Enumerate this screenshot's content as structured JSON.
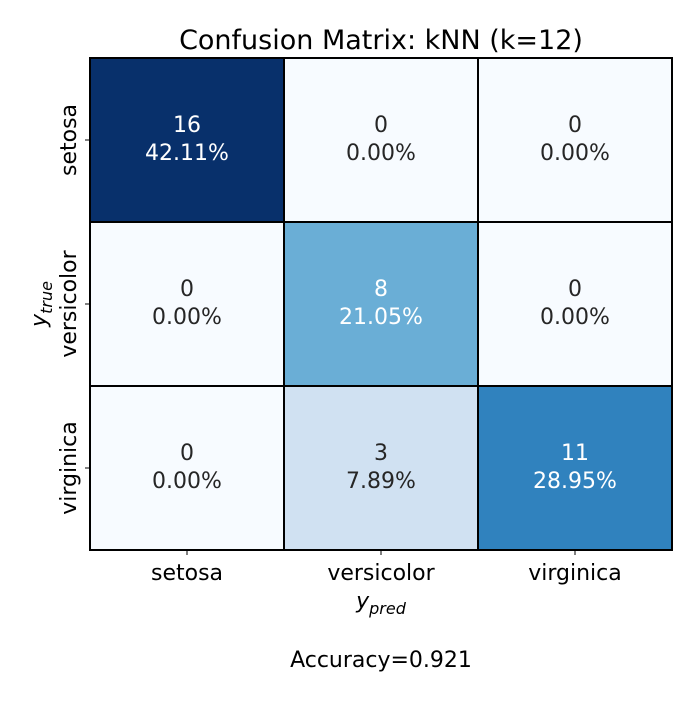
{
  "chart_data": {
    "type": "heatmap",
    "title": "Confusion Matrix: kNN (k=12)",
    "xlabel": {
      "base": "y",
      "sub": "pred"
    },
    "ylabel": {
      "base": "y",
      "sub": "true"
    },
    "row_labels": [
      "setosa",
      "versicolor",
      "virginica"
    ],
    "col_labels": [
      "setosa",
      "versicolor",
      "virginica"
    ],
    "counts": [
      [
        16,
        0,
        0
      ],
      [
        0,
        8,
        0
      ],
      [
        0,
        3,
        11
      ]
    ],
    "percents": [
      [
        "42.11%",
        "0.00%",
        "0.00%"
      ],
      [
        "0.00%",
        "21.05%",
        "0.00%"
      ],
      [
        "0.00%",
        "7.89%",
        "28.95%"
      ]
    ],
    "colors": [
      [
        "#08306b",
        "#f7fbff",
        "#f7fbff"
      ],
      [
        "#f7fbff",
        "#6aaed6",
        "#f7fbff"
      ],
      [
        "#f7fbff",
        "#d0e1f2",
        "#3082be"
      ]
    ],
    "colormap": "Blues",
    "footer": "Accuracy=0.921"
  }
}
